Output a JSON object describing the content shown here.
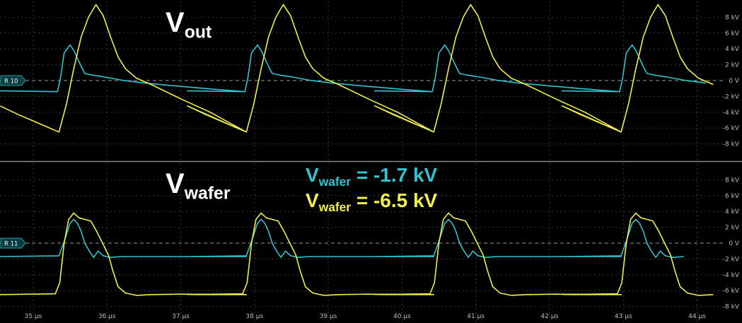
{
  "colors": {
    "background": "#000000",
    "grid": "#3a3a3a",
    "divider": "#8a8a8a",
    "cyan": "#2fc4cf",
    "yellow": "#f2ee4a",
    "label": "#ffffff",
    "tick": "#bdbdbd",
    "ref_tag": "#1f9fa8"
  },
  "annotations": {
    "vout_main": "V",
    "vout_sub": "out",
    "vwafer_main": "V",
    "vwafer_sub": "wafer",
    "cyan_main": "V",
    "cyan_sub": "wafer",
    "cyan_rest": " = -1.7 kV",
    "yellow_main": "V",
    "yellow_sub": "wafer",
    "yellow_rest": " = -6.5 kV"
  },
  "chart_data": [
    {
      "type": "line",
      "title": "",
      "xlabel": "",
      "ylabel": "",
      "ref_marker": "R 10",
      "xlim": [
        34.55,
        44.35
      ],
      "ylim": [
        -10,
        10
      ],
      "x_ticks": [
        "35 µs",
        "36 µs",
        "37 µs",
        "38 µs",
        "39 µs",
        "40 µs",
        "41 µs",
        "42 µs",
        "43 µs",
        "44 µs"
      ],
      "x_tick_values": [
        35,
        36,
        37,
        38,
        39,
        40,
        41,
        42,
        43,
        44
      ],
      "y_ticks": [
        "8 kV",
        "6 kV",
        "4 kV",
        "2 kV",
        "0 V",
        "-2 kV",
        "-4 kV",
        "-6 kV",
        "-8 kV"
      ],
      "y_tick_values": [
        8,
        6,
        4,
        2,
        0,
        -2,
        -4,
        -6,
        -8
      ],
      "period_us": 2.54,
      "series": [
        {
          "color": "cyan",
          "x": [
            34.55,
            35.33,
            35.37,
            35.42,
            35.5,
            35.55,
            35.6,
            35.65,
            35.7,
            35.75,
            35.8,
            35.9,
            36.0,
            36.2,
            36.5,
            36.9,
            37.4,
            37.87
          ],
          "y": [
            -1.3,
            -1.4,
            0.3,
            3.5,
            4.5,
            3.8,
            2.8,
            1.8,
            0.9,
            0.8,
            0.7,
            0.55,
            0.4,
            0.05,
            -0.3,
            -0.65,
            -1.05,
            -1.4
          ]
        },
        {
          "color": "yellow",
          "x": [
            34.55,
            34.8,
            35.0,
            35.2,
            35.35,
            35.45,
            35.55,
            35.65,
            35.75,
            35.85,
            35.95,
            36.05,
            36.15,
            36.25,
            36.4,
            36.6,
            37.0,
            37.4,
            37.89
          ],
          "y": [
            -3.2,
            -4.3,
            -5.1,
            -5.9,
            -6.5,
            -3.0,
            1.5,
            5.5,
            8.0,
            9.6,
            8.2,
            5.5,
            3.0,
            1.5,
            0.3,
            -0.5,
            -2.3,
            -4.0,
            -6.5
          ]
        }
      ]
    },
    {
      "type": "line",
      "title": "",
      "xlabel": "",
      "ylabel": "",
      "ref_marker": "R 11",
      "xlim": [
        34.55,
        44.35
      ],
      "ylim": [
        -10,
        10
      ],
      "x_ticks": [
        "35 µs",
        "36 µs",
        "37 µs",
        "38 µs",
        "39 µs",
        "40 µs",
        "41 µs",
        "42 µs",
        "43 µs",
        "44 µs"
      ],
      "x_tick_values": [
        35,
        36,
        37,
        38,
        39,
        40,
        41,
        42,
        43,
        44
      ],
      "y_ticks": [
        "8 kV",
        "6 kV",
        "4 kV",
        "2 kV",
        "0 V",
        "-2 kV",
        "-4 kV",
        "-6 kV",
        "-8 kV"
      ],
      "y_tick_values": [
        8,
        6,
        4,
        2,
        0,
        -2,
        -4,
        -6,
        -8
      ],
      "period_us": 2.54,
      "series": [
        {
          "color": "cyan",
          "x": [
            34.55,
            35.35,
            35.43,
            35.5,
            35.55,
            35.6,
            35.65,
            35.7,
            35.76,
            35.82,
            35.88,
            35.95,
            36.05,
            36.2,
            37.4,
            37.89
          ],
          "y": [
            -1.7,
            -1.6,
            0.5,
            2.5,
            3.0,
            2.5,
            1.5,
            0.0,
            -1.0,
            -1.8,
            -1.0,
            -1.6,
            -1.8,
            -1.7,
            -1.7,
            -1.7
          ]
        },
        {
          "color": "yellow",
          "x": [
            34.55,
            35.3,
            35.36,
            35.42,
            35.48,
            35.55,
            35.62,
            35.7,
            35.78,
            35.86,
            35.94,
            36.02,
            36.08,
            36.15,
            36.25,
            36.4,
            36.6,
            37.0,
            37.4,
            37.89
          ],
          "y": [
            -6.5,
            -6.4,
            -5.0,
            0.0,
            3.0,
            3.8,
            3.2,
            3.0,
            2.8,
            1.5,
            0.0,
            -1.5,
            -3.5,
            -5.5,
            -6.3,
            -6.6,
            -6.5,
            -6.45,
            -6.5,
            -6.5
          ]
        }
      ]
    }
  ]
}
